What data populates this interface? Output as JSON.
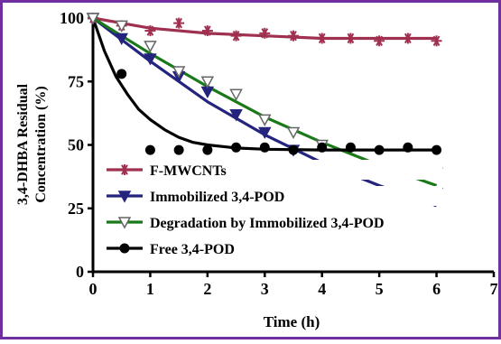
{
  "chart_data": {
    "type": "scatter",
    "xlabel": "Time (h)",
    "ylabel_lines": [
      "3,4-DHBA Residual",
      "Concentration (%)"
    ],
    "xlim": [
      0,
      7
    ],
    "ylim": [
      0,
      100
    ],
    "x_ticks": [
      0,
      1,
      2,
      3,
      4,
      5,
      6,
      7
    ],
    "y_ticks": [
      0,
      25,
      50,
      75,
      100
    ],
    "grid": false,
    "legend_position": "lower-left",
    "frame_color": "#7030a0",
    "series": [
      {
        "name": "F-MWCNTs",
        "marker": "star",
        "color": "#a0304f",
        "points": [
          [
            0,
            100
          ],
          [
            0.5,
            97
          ],
          [
            1,
            95
          ],
          [
            1.5,
            98
          ],
          [
            2,
            95
          ],
          [
            2.5,
            93
          ],
          [
            3,
            94
          ],
          [
            3.5,
            93
          ],
          [
            4,
            92
          ],
          [
            4.5,
            92
          ],
          [
            5,
            91
          ],
          [
            5.5,
            92
          ],
          [
            6,
            91
          ]
        ],
        "fit": [
          [
            0,
            100
          ],
          [
            1,
            96
          ],
          [
            2,
            94
          ],
          [
            3,
            93
          ],
          [
            4,
            92
          ],
          [
            5,
            92
          ],
          [
            6,
            92
          ]
        ]
      },
      {
        "name": "Immobilized 3,4-POD",
        "marker": "triangle-down",
        "color": "#24247f",
        "points": [
          [
            0,
            100
          ],
          [
            0.5,
            92
          ],
          [
            1,
            84
          ],
          [
            1.5,
            77
          ],
          [
            2,
            71
          ],
          [
            2.5,
            62
          ],
          [
            3,
            55
          ],
          [
            3.5,
            48
          ],
          [
            4,
            40
          ],
          [
            4.5,
            31
          ],
          [
            5,
            31
          ],
          [
            5.5,
            31
          ],
          [
            6,
            31
          ]
        ],
        "fit": [
          [
            0,
            100
          ],
          [
            1,
            83
          ],
          [
            2,
            67
          ],
          [
            3,
            54
          ],
          [
            4,
            43
          ],
          [
            5,
            34
          ],
          [
            6,
            26
          ]
        ]
      },
      {
        "name": "Degradation by Immobilized 3,4-POD",
        "marker": "triangle-down-open",
        "color": "#1a7a1a",
        "points": [
          [
            0,
            100
          ],
          [
            0.5,
            97
          ],
          [
            1,
            89
          ],
          [
            1.5,
            79
          ],
          [
            2,
            75
          ],
          [
            2.5,
            70
          ],
          [
            3,
            60
          ],
          [
            3.5,
            55
          ],
          [
            4,
            50
          ],
          [
            4.5,
            39
          ],
          [
            5,
            40
          ],
          [
            5.5,
            39
          ],
          [
            6,
            39
          ]
        ],
        "fit": [
          [
            0,
            100
          ],
          [
            1,
            86
          ],
          [
            2,
            73
          ],
          [
            3,
            61
          ],
          [
            4,
            51
          ],
          [
            5,
            42
          ],
          [
            6,
            34
          ]
        ]
      },
      {
        "name": "Free 3,4-POD",
        "marker": "circle",
        "color": "#000000",
        "points": [
          [
            0.5,
            78
          ],
          [
            1,
            48
          ],
          [
            1.5,
            48
          ],
          [
            2,
            48
          ],
          [
            2.5,
            49
          ],
          [
            3,
            49
          ],
          [
            3.5,
            48
          ],
          [
            4,
            49
          ],
          [
            4.5,
            49
          ],
          [
            5,
            48
          ],
          [
            5.5,
            49
          ],
          [
            6,
            48
          ]
        ],
        "fit": [
          [
            0,
            100
          ],
          [
            0.2,
            87
          ],
          [
            0.4,
            77
          ],
          [
            0.6,
            70
          ],
          [
            0.8,
            64
          ],
          [
            1,
            60
          ],
          [
            1.25,
            56
          ],
          [
            1.5,
            53
          ],
          [
            1.75,
            51
          ],
          [
            2,
            50
          ],
          [
            2.5,
            48.8
          ],
          [
            3,
            48.3
          ],
          [
            4,
            48
          ],
          [
            5,
            48
          ],
          [
            6,
            48
          ]
        ]
      }
    ]
  }
}
